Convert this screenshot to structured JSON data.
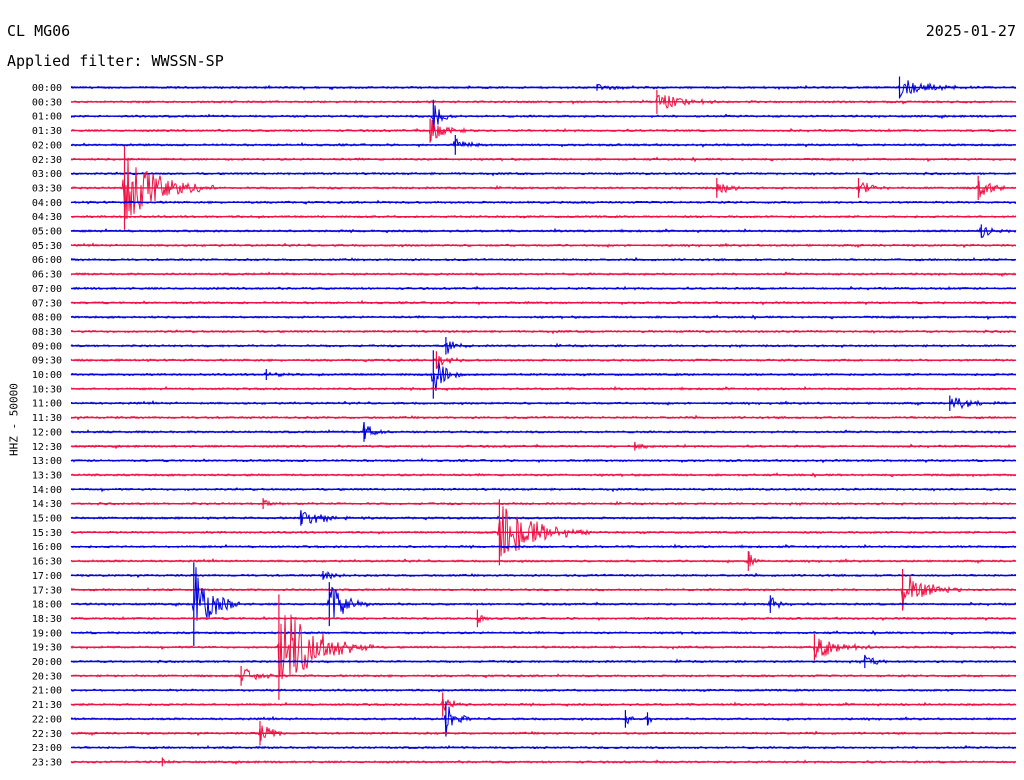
{
  "header": {
    "station": "CL MG06",
    "date": "2025-01-27",
    "filter_label": "Applied filter: WWSSN-SP"
  },
  "colors": {
    "blue": "#0000dd",
    "red": "#ee1144"
  },
  "chart_data": {
    "type": "line",
    "title": "CL MG06",
    "subtitle": "Applied filter: WWSSN-SP",
    "ylabel": "HHZ - 50000",
    "xlabel": "",
    "grid": false,
    "legend": "none",
    "row_interval_minutes": 30,
    "series_colors_alternating": [
      "blue",
      "red"
    ],
    "categories": [
      "00:00",
      "00:30",
      "01:00",
      "01:30",
      "02:00",
      "02:30",
      "03:00",
      "03:30",
      "04:00",
      "04:30",
      "05:00",
      "05:30",
      "06:00",
      "06:30",
      "07:00",
      "07:30",
      "08:00",
      "08:30",
      "09:00",
      "09:30",
      "10:00",
      "10:30",
      "11:00",
      "11:30",
      "12:00",
      "12:30",
      "13:00",
      "13:30",
      "14:00",
      "14:30",
      "15:00",
      "15:30",
      "16:00",
      "16:30",
      "17:00",
      "17:30",
      "18:00",
      "18:30",
      "19:00",
      "19:30",
      "20:00",
      "20:30",
      "21:00",
      "21:30",
      "22:00",
      "22:30",
      "23:00",
      "23:30"
    ],
    "events": [
      {
        "row": 0,
        "minute": 26.3,
        "amp": 1.0,
        "dur": 2.5
      },
      {
        "row": 0,
        "minute": 16.7,
        "amp": 0.3,
        "dur": 2.5
      },
      {
        "row": 1,
        "minute": 18.6,
        "amp": 1.1,
        "dur": 2.0
      },
      {
        "row": 2,
        "minute": 11.5,
        "amp": 1.5,
        "dur": 0.8
      },
      {
        "row": 3,
        "minute": 11.4,
        "amp": 1.1,
        "dur": 1.5
      },
      {
        "row": 4,
        "minute": 12.2,
        "amp": 0.9,
        "dur": 1.0
      },
      {
        "row": 7,
        "minute": 1.7,
        "amp": 3.8,
        "dur": 3.0
      },
      {
        "row": 7,
        "minute": 20.5,
        "amp": 0.9,
        "dur": 1.0
      },
      {
        "row": 7,
        "minute": 25.0,
        "amp": 0.9,
        "dur": 1.0
      },
      {
        "row": 7,
        "minute": 28.8,
        "amp": 1.1,
        "dur": 1.0
      },
      {
        "row": 10,
        "minute": 28.9,
        "amp": 0.6,
        "dur": 1.0
      },
      {
        "row": 18,
        "minute": 11.9,
        "amp": 0.8,
        "dur": 0.8
      },
      {
        "row": 19,
        "minute": 11.6,
        "amp": 0.8,
        "dur": 1.0
      },
      {
        "row": 20,
        "minute": 11.5,
        "amp": 2.2,
        "dur": 1.0
      },
      {
        "row": 20,
        "minute": 6.2,
        "amp": 0.5,
        "dur": 1.0
      },
      {
        "row": 22,
        "minute": 27.9,
        "amp": 0.7,
        "dur": 2.0
      },
      {
        "row": 24,
        "minute": 9.3,
        "amp": 0.9,
        "dur": 0.8
      },
      {
        "row": 25,
        "minute": 17.9,
        "amp": 0.4,
        "dur": 1.0
      },
      {
        "row": 29,
        "minute": 6.1,
        "amp": 0.5,
        "dur": 0.8
      },
      {
        "row": 30,
        "minute": 7.3,
        "amp": 0.7,
        "dur": 2.5
      },
      {
        "row": 31,
        "minute": 13.6,
        "amp": 3.0,
        "dur": 3.0
      },
      {
        "row": 33,
        "minute": 21.5,
        "amp": 0.9,
        "dur": 0.5
      },
      {
        "row": 34,
        "minute": 8.0,
        "amp": 0.4,
        "dur": 1.5
      },
      {
        "row": 35,
        "minute": 26.4,
        "amp": 1.9,
        "dur": 2.0
      },
      {
        "row": 36,
        "minute": 3.9,
        "amp": 3.8,
        "dur": 1.5
      },
      {
        "row": 36,
        "minute": 8.2,
        "amp": 2.0,
        "dur": 1.5
      },
      {
        "row": 36,
        "minute": 22.2,
        "amp": 0.8,
        "dur": 1.0
      },
      {
        "row": 37,
        "minute": 12.9,
        "amp": 0.8,
        "dur": 0.5
      },
      {
        "row": 39,
        "minute": 6.6,
        "amp": 4.8,
        "dur": 3.0
      },
      {
        "row": 39,
        "minute": 23.6,
        "amp": 1.2,
        "dur": 2.0
      },
      {
        "row": 40,
        "minute": 25.2,
        "amp": 0.6,
        "dur": 1.0
      },
      {
        "row": 41,
        "minute": 5.4,
        "amp": 0.9,
        "dur": 1.2
      },
      {
        "row": 43,
        "minute": 11.8,
        "amp": 1.1,
        "dur": 0.8
      },
      {
        "row": 44,
        "minute": 11.9,
        "amp": 1.6,
        "dur": 1.0
      },
      {
        "row": 44,
        "minute": 17.6,
        "amp": 0.8,
        "dur": 0.5
      },
      {
        "row": 44,
        "minute": 18.3,
        "amp": 0.6,
        "dur": 0.5
      },
      {
        "row": 45,
        "minute": 6.0,
        "amp": 1.1,
        "dur": 1.0
      },
      {
        "row": 47,
        "minute": 2.9,
        "amp": 0.4,
        "dur": 0.5
      }
    ]
  }
}
